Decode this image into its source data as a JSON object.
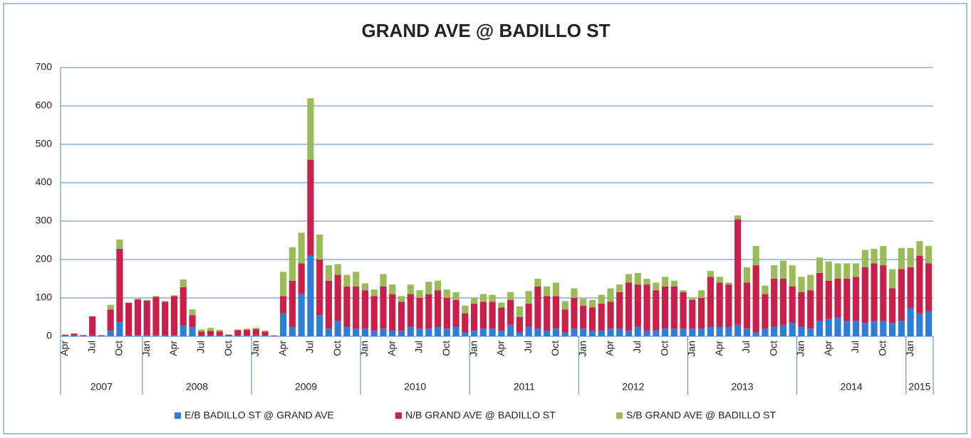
{
  "chart_data": {
    "type": "bar",
    "stacked": true,
    "title": "GRAND AVE @ BADILLO ST",
    "categories": [
      "Apr",
      null,
      null,
      "Jul",
      null,
      null,
      "Oct",
      null,
      null,
      "Jan",
      null,
      null,
      "Apr",
      null,
      null,
      "Jul",
      null,
      null,
      "Oct",
      null,
      null,
      "Jan",
      null,
      null,
      "Apr",
      null,
      null,
      "Jul",
      null,
      null,
      "Oct",
      null,
      null,
      "Jan",
      null,
      null,
      "Apr",
      null,
      null,
      "Jul",
      null,
      null,
      "Oct",
      null,
      null,
      "Jan",
      null,
      null,
      "Apr",
      null,
      null,
      "Jul",
      null,
      null,
      "Oct",
      null,
      null,
      "Jan",
      null,
      null,
      "Apr",
      null,
      null,
      "Jul",
      null,
      null,
      "Oct",
      null,
      null,
      "Jan",
      null,
      null,
      "Apr",
      null,
      null,
      "Jul",
      null,
      null,
      "Oct",
      null,
      null,
      "Jan",
      null,
      null,
      "Apr",
      null,
      null,
      "Jul",
      null,
      null,
      "Oct",
      null,
      null,
      "Jan",
      null,
      null
    ],
    "years": [
      "2007",
      "2008",
      "2009",
      "2010",
      "2011",
      "2012",
      "2013",
      "2014",
      "2015"
    ],
    "series": [
      {
        "name": "E/B BADILLO ST @ GRAND AVE",
        "color": "#2e7ed6",
        "values": [
          2,
          2,
          1,
          2,
          1,
          15,
          38,
          2,
          3,
          3,
          3,
          2,
          3,
          28,
          25,
          2,
          2,
          2,
          1,
          2,
          2,
          2,
          2,
          1,
          60,
          25,
          110,
          210,
          55,
          20,
          40,
          25,
          20,
          20,
          15,
          20,
          15,
          15,
          25,
          20,
          20,
          25,
          20,
          25,
          10,
          15,
          20,
          20,
          15,
          30,
          10,
          25,
          20,
          15,
          20,
          10,
          20,
          20,
          15,
          15,
          20,
          20,
          15,
          25,
          15,
          15,
          20,
          20,
          20,
          20,
          20,
          25,
          25,
          25,
          30,
          20,
          10,
          20,
          25,
          30,
          35,
          25,
          20,
          40,
          45,
          50,
          40,
          40,
          35,
          40,
          40,
          35,
          40,
          75,
          60,
          65
        ]
      },
      {
        "name": "N/B GRAND AVE @ BADILLO ST",
        "color": "#c8204a",
        "values": [
          2,
          5,
          2,
          50,
          2,
          55,
          190,
          85,
          93,
          90,
          100,
          88,
          102,
          100,
          30,
          10,
          12,
          10,
          3,
          14,
          15,
          17,
          10,
          1,
          45,
          120,
          80,
          250,
          145,
          125,
          120,
          105,
          110,
          100,
          90,
          110,
          95,
          75,
          85,
          80,
          90,
          95,
          80,
          70,
          50,
          70,
          70,
          70,
          60,
          65,
          40,
          60,
          110,
          90,
          85,
          60,
          80,
          60,
          60,
          70,
          70,
          95,
          125,
          110,
          120,
          105,
          110,
          110,
          95,
          75,
          80,
          130,
          115,
          110,
          275,
          120,
          175,
          90,
          125,
          120,
          95,
          90,
          100,
          125,
          100,
          100,
          110,
          115,
          145,
          150,
          145,
          90,
          135,
          105,
          150,
          125
        ]
      },
      {
        "name": "S/B GRAND AVE @ BADILLO ST",
        "color": "#9bbb59",
        "values": [
          1,
          1,
          0,
          0,
          0,
          12,
          24,
          1,
          2,
          2,
          2,
          2,
          2,
          20,
          15,
          6,
          8,
          5,
          1,
          2,
          3,
          3,
          3,
          1,
          63,
          87,
          80,
          160,
          65,
          40,
          28,
          30,
          38,
          18,
          17,
          32,
          25,
          15,
          25,
          20,
          32,
          25,
          22,
          20,
          20,
          15,
          20,
          18,
          13,
          20,
          28,
          33,
          20,
          25,
          35,
          22,
          25,
          18,
          20,
          23,
          35,
          20,
          22,
          30,
          15,
          20,
          25,
          15,
          5,
          5,
          20,
          15,
          15,
          5,
          10,
          40,
          50,
          22,
          35,
          47,
          55,
          40,
          40,
          40,
          50,
          40,
          40,
          35,
          45,
          38,
          50,
          50,
          55,
          50,
          38,
          45
        ]
      }
    ],
    "ylim": [
      0,
      700
    ],
    "yticks": [
      0,
      100,
      200,
      300,
      400,
      500,
      600,
      700
    ],
    "grid": true
  }
}
